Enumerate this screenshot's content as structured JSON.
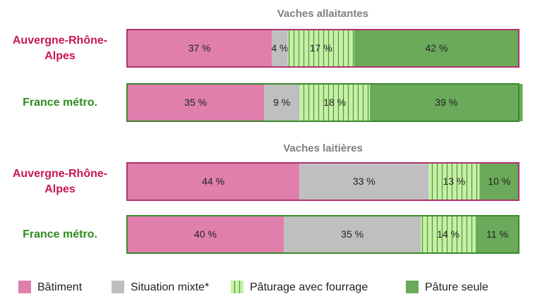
{
  "chart_data": [
    {
      "type": "stacked-bar",
      "orientation": "horizontal",
      "title": "Vaches allaitantes",
      "categories": [
        "Auvergne-Rhône-Alpes",
        "France métro."
      ],
      "category_colors": [
        "#c8174f",
        "#2e8b1e"
      ],
      "border_colors": [
        "#b03270",
        "#3a8a2a"
      ],
      "xlim": [
        0,
        100
      ],
      "series": [
        {
          "name": "Bâtiment",
          "color": "#e07fab",
          "values": [
            37,
            35
          ],
          "value_labels": [
            "37 %",
            "35 %"
          ]
        },
        {
          "name": "Situation mixte*",
          "color": "#bfbfbf",
          "values": [
            4,
            9
          ],
          "value_labels": [
            "4 %",
            "9 %"
          ]
        },
        {
          "name": "Pâturage avec fourrage",
          "color": "#c8f0a8",
          "pattern": "stripes",
          "values": [
            17,
            18
          ],
          "value_labels": [
            "17 %",
            "18 %"
          ]
        },
        {
          "name": "Pâture seule",
          "color": "#6aaa5a",
          "values": [
            42,
            39
          ],
          "value_labels": [
            "42 %",
            "39 %"
          ]
        }
      ]
    },
    {
      "type": "stacked-bar",
      "orientation": "horizontal",
      "title": "Vaches laitières",
      "categories": [
        "Auvergne-Rhône-Alpes",
        "France métro."
      ],
      "category_colors": [
        "#c8174f",
        "#2e8b1e"
      ],
      "border_colors": [
        "#b03270",
        "#3a8a2a"
      ],
      "xlim": [
        0,
        100
      ],
      "series": [
        {
          "color": "#e07fab",
          "values": [
            44,
            40
          ],
          "value_labels": [
            "44 %",
            "40 %"
          ]
        },
        {
          "color": "#bfbfbf",
          "values": [
            33,
            35
          ],
          "value_labels": [
            "33 %",
            "35 %"
          ]
        },
        {
          "color": "#c8f0a8",
          "pattern": "stripes",
          "values": [
            13,
            14
          ],
          "value_labels": [
            "13 %",
            "14 %"
          ]
        },
        {
          "color": "#6aaa5a",
          "values": [
            10,
            11
          ],
          "value_labels": [
            "10 %",
            "11 %"
          ]
        }
      ]
    }
  ]
}
